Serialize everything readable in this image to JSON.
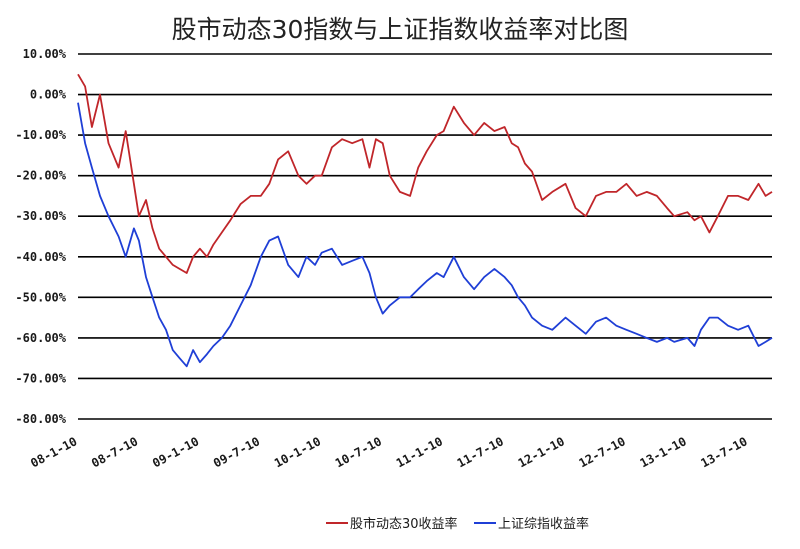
{
  "chart_data": {
    "type": "line",
    "title": "股市动态30指数与上证指数收益率对比图",
    "y_ticks": [
      "10.00%",
      "0.00%",
      "-10.00%",
      "-20.00%",
      "-30.00%",
      "-40.00%",
      "-50.00%",
      "-60.00%",
      "-70.00%",
      "-80.00%"
    ],
    "ylim": [
      -80,
      10
    ],
    "x_ticks": [
      "08-1-10",
      "08-7-10",
      "09-1-10",
      "09-7-10",
      "10-1-10",
      "10-7-10",
      "11-1-10",
      "11-7-10",
      "12-1-10",
      "12-7-10",
      "13-1-10",
      "13-7-10"
    ],
    "grid": true,
    "legend_position": "bottom",
    "series": [
      {
        "name": "股市动态30收益率",
        "color": "#c0262a",
        "x": [
          "08-1-10",
          "08-1-31",
          "08-2-21",
          "08-3-15",
          "08-4-10",
          "08-5-10",
          "08-6-01",
          "08-6-25",
          "08-7-10",
          "08-7-31",
          "08-8-20",
          "08-9-10",
          "08-9-30",
          "08-10-20",
          "08-11-10",
          "08-12-01",
          "08-12-20",
          "09-1-10",
          "09-2-01",
          "09-2-20",
          "09-3-15",
          "09-4-10",
          "09-5-10",
          "09-6-10",
          "09-7-10",
          "09-8-05",
          "09-9-01",
          "09-10-01",
          "09-11-01",
          "09-11-25",
          "09-12-20",
          "10-1-10",
          "10-2-10",
          "10-3-10",
          "10-4-10",
          "10-5-10",
          "10-6-01",
          "10-6-20",
          "10-7-10",
          "10-8-01",
          "10-9-01",
          "10-10-01",
          "10-10-25",
          "10-11-20",
          "10-12-20",
          "11-1-10",
          "11-2-10",
          "11-3-10",
          "11-4-10",
          "11-5-10",
          "11-6-10",
          "11-7-10",
          "11-8-01",
          "11-8-20",
          "11-9-10",
          "11-10-01",
          "11-11-01",
          "11-12-01",
          "12-1-10",
          "12-2-10",
          "12-3-10",
          "12-4-10",
          "12-5-10",
          "12-6-10",
          "12-7-10",
          "12-8-10",
          "12-9-10",
          "12-10-10",
          "12-11-10",
          "12-12-01",
          "13-1-10",
          "13-2-01",
          "13-2-20",
          "13-3-15",
          "13-4-10",
          "13-5-10",
          "13-6-10",
          "13-7-10",
          "13-8-10",
          "13-9-01",
          "13-9-20"
        ],
        "values": [
          5,
          2,
          -8,
          0,
          -12,
          -18,
          -9,
          -22,
          -30,
          -26,
          -33,
          -38,
          -40,
          -42,
          -43,
          -44,
          -40,
          -38,
          -40,
          -37,
          -34,
          -31,
          -27,
          -25,
          -25,
          -22,
          -16,
          -14,
          -20,
          -22,
          -20,
          -20,
          -13,
          -11,
          -12,
          -11,
          -18,
          -11,
          -12,
          -20,
          -24,
          -25,
          -18,
          -14,
          -10,
          -9,
          -3,
          -7,
          -10,
          -7,
          -9,
          -8,
          -12,
          -13,
          -17,
          -19,
          -26,
          -24,
          -22,
          -28,
          -30,
          -25,
          -24,
          -24,
          -22,
          -25,
          -24,
          -25,
          -28,
          -30,
          -29,
          -31,
          -30,
          -34,
          -30,
          -25,
          -25,
          -26,
          -22,
          -25,
          -24
        ]
      },
      {
        "name": "上证综指收益率",
        "color": "#1f3fd6",
        "x": [
          "08-1-10",
          "08-1-31",
          "08-2-21",
          "08-3-15",
          "08-4-10",
          "08-5-10",
          "08-6-01",
          "08-6-25",
          "08-7-10",
          "08-7-31",
          "08-8-20",
          "08-9-10",
          "08-9-30",
          "08-10-20",
          "08-11-10",
          "08-12-01",
          "08-12-20",
          "09-1-10",
          "09-2-01",
          "09-2-20",
          "09-3-15",
          "09-4-10",
          "09-5-10",
          "09-6-10",
          "09-7-10",
          "09-8-05",
          "09-9-01",
          "09-10-01",
          "09-11-01",
          "09-11-25",
          "09-12-20",
          "10-1-10",
          "10-2-10",
          "10-3-10",
          "10-4-10",
          "10-5-10",
          "10-6-01",
          "10-6-20",
          "10-7-10",
          "10-8-01",
          "10-9-01",
          "10-10-01",
          "10-10-25",
          "10-11-20",
          "10-12-20",
          "11-1-10",
          "11-2-10",
          "11-3-10",
          "11-4-10",
          "11-5-10",
          "11-6-10",
          "11-7-10",
          "11-8-01",
          "11-8-20",
          "11-9-10",
          "11-10-01",
          "11-11-01",
          "11-12-01",
          "12-1-10",
          "12-2-10",
          "12-3-10",
          "12-4-10",
          "12-5-10",
          "12-6-10",
          "12-7-10",
          "12-8-10",
          "12-9-10",
          "12-10-10",
          "12-11-10",
          "12-12-01",
          "13-1-10",
          "13-2-01",
          "13-2-20",
          "13-3-15",
          "13-4-10",
          "13-5-10",
          "13-6-10",
          "13-7-10",
          "13-8-10",
          "13-9-01",
          "13-9-20"
        ],
        "values": [
          -2,
          -12,
          -18,
          -25,
          -30,
          -35,
          -40,
          -33,
          -36,
          -45,
          -50,
          -55,
          -58,
          -63,
          -65,
          -67,
          -63,
          -66,
          -64,
          -62,
          -60,
          -57,
          -52,
          -47,
          -40,
          -36,
          -35,
          -42,
          -45,
          -40,
          -42,
          -39,
          -38,
          -42,
          -41,
          -40,
          -44,
          -50,
          -54,
          -52,
          -50,
          -50,
          -48,
          -46,
          -44,
          -45,
          -40,
          -45,
          -48,
          -45,
          -43,
          -45,
          -47,
          -50,
          -52,
          -55,
          -57,
          -58,
          -55,
          -57,
          -59,
          -56,
          -55,
          -57,
          -58,
          -59,
          -60,
          -61,
          -60,
          -61,
          -60,
          -62,
          -58,
          -55,
          -55,
          -57,
          -58,
          -57,
          -62,
          -61,
          -60
        ]
      }
    ]
  }
}
